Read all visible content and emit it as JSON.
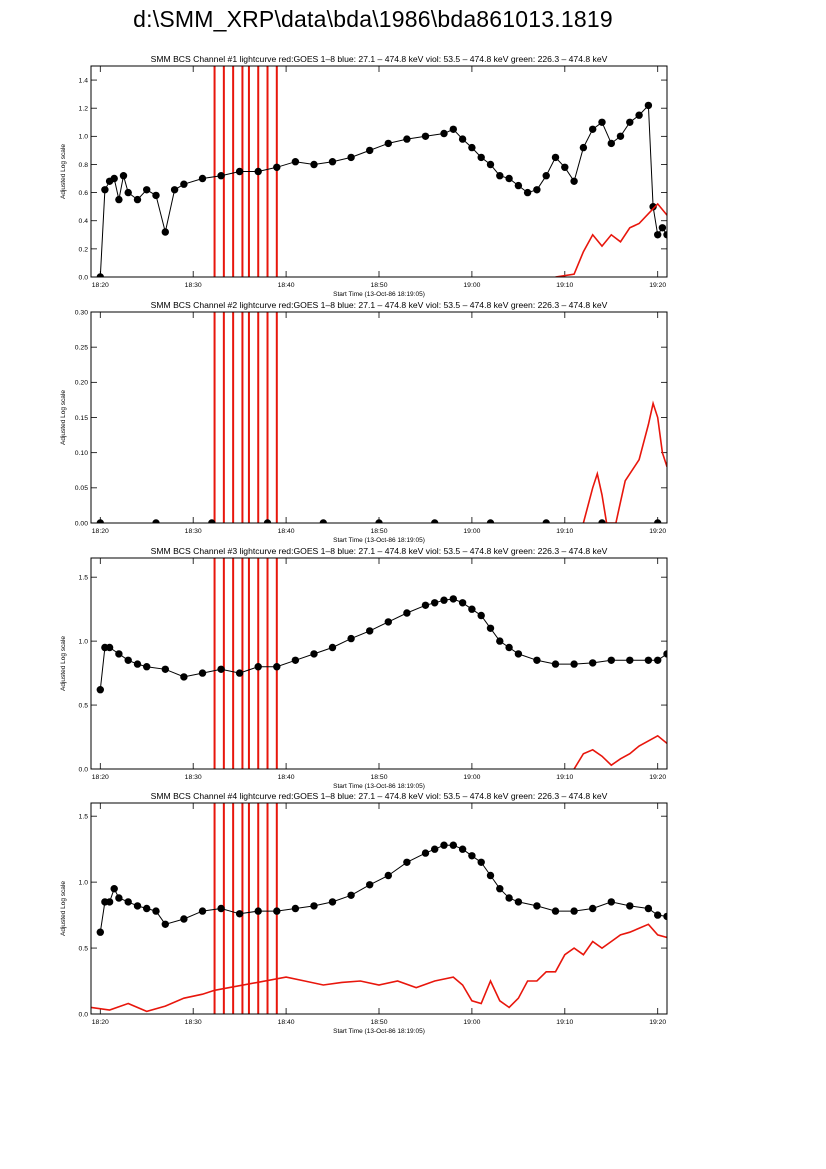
{
  "page_title": "d:\\SMM_XRP\\data\\bda\\1986\\bda861013.1819",
  "colors": {
    "data": "#000000",
    "goes": "#e8160c",
    "axes": "#000000"
  },
  "chart_data": [
    {
      "type": "line",
      "title": "SMM BCS Channel #1 lightcurve  red:GOES 1–8  blue: 27.1 – 474.8 keV  viol: 53.5 – 474.8 keV  green: 226.3 – 474.8 keV",
      "xlabel": "Start Time (13-Oct-86 18:19:05)",
      "ylabel": "Adjusted Log scale",
      "xlim": [
        0,
        62
      ],
      "ylim": [
        0,
        1.5
      ],
      "xticks": [
        {
          "v": 1,
          "label": "18:20"
        },
        {
          "v": 11,
          "label": "18:30"
        },
        {
          "v": 21,
          "label": "18:40"
        },
        {
          "v": 31,
          "label": "18:50"
        },
        {
          "v": 41,
          "label": "19:00"
        },
        {
          "v": 51,
          "label": "19:10"
        },
        {
          "v": 61,
          "label": "19:20"
        }
      ],
      "yticks": [
        {
          "v": 0,
          "label": "0.0"
        },
        {
          "v": 0.2,
          "label": "0.2"
        },
        {
          "v": 0.4,
          "label": "0.4"
        },
        {
          "v": 0.6,
          "label": "0.6"
        },
        {
          "v": 0.8,
          "label": "0.8"
        },
        {
          "v": 1.0,
          "label": "1.0"
        },
        {
          "v": 1.2,
          "label": "1.2"
        },
        {
          "v": 1.4,
          "label": "1.4"
        }
      ],
      "series": [
        {
          "role": "data",
          "marker": "circle",
          "x": [
            1.0,
            1.5,
            2.0,
            2.5,
            3.0,
            3.5,
            4.0,
            5.0,
            6.0,
            7.0,
            8.0,
            9.0,
            10.0,
            12.0,
            14.0,
            16.0,
            18.0,
            20.0,
            22.0,
            24.0,
            26.0,
            28.0,
            30.0,
            32.0,
            34.0,
            36.0,
            38.0,
            39.0,
            40.0,
            41.0,
            42.0,
            43.0,
            44.0,
            45.0,
            46.0,
            47.0,
            48.0,
            49.0,
            50.0,
            51.0,
            52.0,
            53.0,
            54.0,
            55.0,
            56.0,
            57.0,
            58.0,
            59.0,
            60.0,
            60.5,
            61.0,
            61.5,
            62.0
          ],
          "y": [
            0.0,
            0.62,
            0.68,
            0.7,
            0.55,
            0.72,
            0.6,
            0.55,
            0.62,
            0.58,
            0.32,
            0.62,
            0.66,
            0.7,
            0.72,
            0.75,
            0.75,
            0.78,
            0.82,
            0.8,
            0.82,
            0.85,
            0.9,
            0.95,
            0.98,
            1.0,
            1.02,
            1.05,
            0.98,
            0.92,
            0.85,
            0.8,
            0.72,
            0.7,
            0.65,
            0.6,
            0.62,
            0.72,
            0.85,
            0.78,
            0.68,
            0.92,
            1.05,
            1.1,
            0.95,
            1.0,
            1.1,
            1.15,
            1.22,
            0.5,
            0.3,
            0.35,
            0.3
          ]
        },
        {
          "role": "goes",
          "x": [
            50.0,
            52.0,
            53.0,
            54.0,
            55.0,
            56.0,
            57.0,
            58.0,
            59.0,
            60.0,
            61.0,
            62.0
          ],
          "y": [
            0.0,
            0.02,
            0.18,
            0.3,
            0.22,
            0.3,
            0.25,
            0.35,
            0.38,
            0.45,
            0.52,
            0.44
          ]
        }
      ],
      "spikes": [
        13.3,
        14.3,
        15.3,
        16.3,
        17.0,
        18.0,
        19.0,
        20.0
      ]
    },
    {
      "type": "line",
      "title": "SMM BCS Channel #2 lightcurve  red:GOES 1–8  blue: 27.1 – 474.8 keV  viol: 53.5 – 474.8 keV  green: 226.3 – 474.8 keV",
      "xlabel": "Start Time (13-Oct-86 18:19:05)",
      "ylabel": "Adjusted Log scale",
      "xlim": [
        0,
        62
      ],
      "ylim": [
        0,
        0.3
      ],
      "xticks": [
        {
          "v": 1,
          "label": "18:20"
        },
        {
          "v": 11,
          "label": "18:30"
        },
        {
          "v": 21,
          "label": "18:40"
        },
        {
          "v": 31,
          "label": "18:50"
        },
        {
          "v": 41,
          "label": "19:00"
        },
        {
          "v": 51,
          "label": "19:10"
        },
        {
          "v": 61,
          "label": "19:20"
        }
      ],
      "yticks": [
        {
          "v": 0,
          "label": "0.00"
        },
        {
          "v": 0.05,
          "label": "0.05"
        },
        {
          "v": 0.1,
          "label": "0.10"
        },
        {
          "v": 0.15,
          "label": "0.15"
        },
        {
          "v": 0.2,
          "label": "0.20"
        },
        {
          "v": 0.25,
          "label": "0.25"
        },
        {
          "v": 0.3,
          "label": "0.30"
        }
      ],
      "series": [
        {
          "role": "data",
          "marker": "circle",
          "x": [
            1.0,
            7.0,
            13.0,
            19.0,
            25.0,
            31.0,
            37.0,
            43.0,
            49.0,
            55.0,
            61.0
          ],
          "y": [
            0.0,
            0.0,
            0.0,
            0.0,
            0.0,
            0.0,
            0.0,
            0.0,
            0.0,
            0.0,
            0.0
          ]
        },
        {
          "role": "goes",
          "x": [
            53.0,
            54.0,
            54.5,
            55.0,
            55.5,
            56.5,
            57.0,
            57.5,
            58.0,
            59.0,
            60.0,
            60.5,
            61.0,
            61.5,
            62.0
          ],
          "y": [
            0.0,
            0.05,
            0.07,
            0.04,
            0.0,
            0.0,
            0.03,
            0.06,
            0.07,
            0.09,
            0.14,
            0.17,
            0.15,
            0.1,
            0.08
          ]
        }
      ],
      "spikes": [
        13.3,
        14.3,
        15.3,
        16.3,
        17.0,
        18.0,
        19.0,
        20.0
      ]
    },
    {
      "type": "line",
      "title": "SMM BCS Channel #3 lightcurve  red:GOES 1–8  blue: 27.1 – 474.8 keV  viol: 53.5 – 474.8 keV  green: 226.3 – 474.8 keV",
      "xlabel": "Start Time (13-Oct-86 18:19:05)",
      "ylabel": "Adjusted Log scale",
      "xlim": [
        0,
        62
      ],
      "ylim": [
        0,
        1.65
      ],
      "xticks": [
        {
          "v": 1,
          "label": "18:20"
        },
        {
          "v": 11,
          "label": "18:30"
        },
        {
          "v": 21,
          "label": "18:40"
        },
        {
          "v": 31,
          "label": "18:50"
        },
        {
          "v": 41,
          "label": "19:00"
        },
        {
          "v": 51,
          "label": "19:10"
        },
        {
          "v": 61,
          "label": "19:20"
        }
      ],
      "yticks": [
        {
          "v": 0,
          "label": "0.0"
        },
        {
          "v": 0.5,
          "label": "0.5"
        },
        {
          "v": 1.0,
          "label": "1.0"
        },
        {
          "v": 1.5,
          "label": "1.5"
        }
      ],
      "series": [
        {
          "role": "data",
          "marker": "circle",
          "x": [
            1.0,
            1.5,
            2.0,
            3.0,
            4.0,
            5.0,
            6.0,
            8.0,
            10.0,
            12.0,
            14.0,
            16.0,
            18.0,
            20.0,
            22.0,
            24.0,
            26.0,
            28.0,
            30.0,
            32.0,
            34.0,
            36.0,
            37.0,
            38.0,
            39.0,
            40.0,
            41.0,
            42.0,
            43.0,
            44.0,
            45.0,
            46.0,
            48.0,
            50.0,
            52.0,
            54.0,
            56.0,
            58.0,
            60.0,
            61.0,
            62.0
          ],
          "y": [
            0.62,
            0.95,
            0.95,
            0.9,
            0.85,
            0.82,
            0.8,
            0.78,
            0.72,
            0.75,
            0.78,
            0.75,
            0.8,
            0.8,
            0.85,
            0.9,
            0.95,
            1.02,
            1.08,
            1.15,
            1.22,
            1.28,
            1.3,
            1.32,
            1.33,
            1.3,
            1.25,
            1.2,
            1.1,
            1.0,
            0.95,
            0.9,
            0.85,
            0.82,
            0.82,
            0.83,
            0.85,
            0.85,
            0.85,
            0.85,
            0.9
          ]
        },
        {
          "role": "goes",
          "x": [
            52.0,
            53.0,
            54.0,
            55.0,
            56.0,
            57.0,
            58.0,
            59.0,
            60.0,
            61.0,
            62.0
          ],
          "y": [
            0.0,
            0.12,
            0.15,
            0.1,
            0.03,
            0.08,
            0.12,
            0.18,
            0.22,
            0.26,
            0.2
          ]
        }
      ],
      "spikes": [
        13.3,
        14.3,
        15.3,
        16.3,
        17.0,
        18.0,
        19.0,
        20.0
      ]
    },
    {
      "type": "line",
      "title": "SMM BCS Channel #4 lightcurve  red:GOES 1–8  blue: 27.1 – 474.8 keV  viol: 53.5 – 474.8 keV  green: 226.3 – 474.8 keV",
      "xlabel": "Start Time (13-Oct-86 18:19:05)",
      "ylabel": "Adjusted Log scale",
      "xlim": [
        0,
        62
      ],
      "ylim": [
        0,
        1.6
      ],
      "xticks": [
        {
          "v": 1,
          "label": "18:20"
        },
        {
          "v": 11,
          "label": "18:30"
        },
        {
          "v": 21,
          "label": "18:40"
        },
        {
          "v": 31,
          "label": "18:50"
        },
        {
          "v": 41,
          "label": "19:00"
        },
        {
          "v": 51,
          "label": "19:10"
        },
        {
          "v": 61,
          "label": "19:20"
        }
      ],
      "yticks": [
        {
          "v": 0,
          "label": "0.0"
        },
        {
          "v": 0.5,
          "label": "0.5"
        },
        {
          "v": 1.0,
          "label": "1.0"
        },
        {
          "v": 1.5,
          "label": "1.5"
        }
      ],
      "series": [
        {
          "role": "data",
          "marker": "circle",
          "x": [
            1.0,
            1.5,
            2.0,
            2.5,
            3.0,
            4.0,
            5.0,
            6.0,
            7.0,
            8.0,
            10.0,
            12.0,
            14.0,
            16.0,
            18.0,
            20.0,
            22.0,
            24.0,
            26.0,
            28.0,
            30.0,
            32.0,
            34.0,
            36.0,
            37.0,
            38.0,
            39.0,
            40.0,
            41.0,
            42.0,
            43.0,
            44.0,
            45.0,
            46.0,
            48.0,
            50.0,
            52.0,
            54.0,
            56.0,
            58.0,
            60.0,
            61.0,
            62.0
          ],
          "y": [
            0.62,
            0.85,
            0.85,
            0.95,
            0.88,
            0.85,
            0.82,
            0.8,
            0.78,
            0.68,
            0.72,
            0.78,
            0.8,
            0.76,
            0.78,
            0.78,
            0.8,
            0.82,
            0.85,
            0.9,
            0.98,
            1.05,
            1.15,
            1.22,
            1.25,
            1.28,
            1.28,
            1.25,
            1.2,
            1.15,
            1.05,
            0.95,
            0.88,
            0.85,
            0.82,
            0.78,
            0.78,
            0.8,
            0.85,
            0.82,
            0.8,
            0.75,
            0.74
          ]
        },
        {
          "role": "goes",
          "x": [
            0.0,
            2.0,
            4.0,
            6.0,
            8.0,
            10.0,
            12.0,
            13.3,
            21.0,
            23.0,
            25.0,
            27.0,
            29.0,
            31.0,
            33.0,
            35.0,
            37.0,
            39.0,
            40.0,
            41.0,
            42.0,
            43.0,
            44.0,
            45.0,
            46.0,
            47.0,
            48.0,
            49.0,
            50.0,
            51.0,
            52.0,
            53.0,
            54.0,
            55.0,
            56.0,
            57.0,
            58.0,
            59.0,
            60.0,
            61.0,
            62.0
          ],
          "y": [
            0.05,
            0.03,
            0.08,
            0.02,
            0.06,
            0.12,
            0.15,
            0.18,
            0.28,
            0.25,
            0.22,
            0.24,
            0.25,
            0.22,
            0.25,
            0.2,
            0.25,
            0.28,
            0.22,
            0.1,
            0.08,
            0.25,
            0.1,
            0.05,
            0.12,
            0.25,
            0.25,
            0.32,
            0.32,
            0.45,
            0.5,
            0.45,
            0.55,
            0.5,
            0.55,
            0.6,
            0.62,
            0.65,
            0.68,
            0.6,
            0.58
          ]
        }
      ],
      "spikes": [
        13.3,
        14.3,
        15.3,
        16.3,
        17.0,
        18.0,
        19.0,
        20.0
      ]
    }
  ]
}
